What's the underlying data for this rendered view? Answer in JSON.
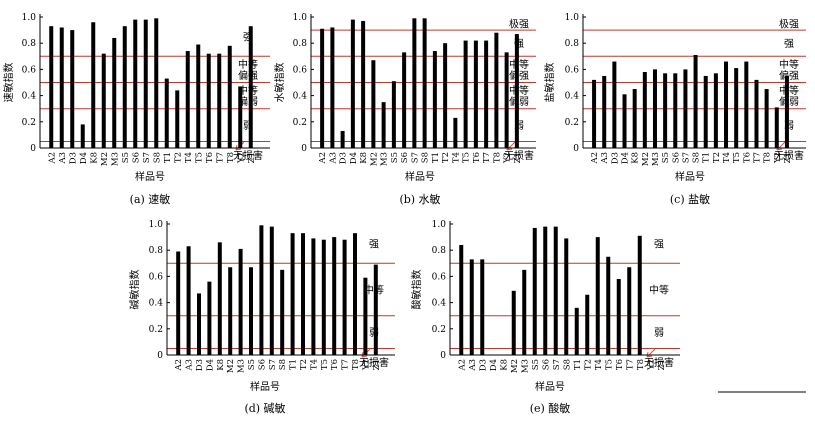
{
  "chart_data": [
    {
      "type": "bar",
      "caption": "(a) 速敏",
      "ylabel": "速敏指数",
      "xlabel": "样品号",
      "ylim": [
        0,
        1.0
      ],
      "yticks": [
        "0",
        "0.2",
        "0.4",
        "0.6",
        "0.8",
        "1.0"
      ],
      "categories": [
        "A2",
        "A3",
        "D3",
        "D4",
        "K8",
        "M2",
        "M3",
        "S5",
        "S6",
        "S7",
        "S8",
        "T1",
        "T2",
        "T4",
        "T5",
        "T6",
        "T7",
        "T8",
        "Y2",
        "Z1"
      ],
      "values": [
        0.93,
        0.92,
        0.9,
        0.18,
        0.96,
        0.72,
        0.84,
        0.93,
        0.98,
        0.98,
        0.99,
        0.53,
        0.44,
        0.74,
        0.79,
        0.72,
        0.72,
        0.78,
        0.47,
        0.93
      ],
      "thresholds": [
        0.7,
        0.5,
        0.3,
        0.05
      ],
      "zones": [
        "强",
        "中等\n偏强",
        "中等\n偏弱",
        "弱",
        "无损害"
      ]
    },
    {
      "type": "bar",
      "caption": "(b) 水敏",
      "ylabel": "水敏指数",
      "xlabel": "样品号",
      "ylim": [
        0,
        1.0
      ],
      "yticks": [
        "0",
        "0.2",
        "0.4",
        "0.6",
        "0.8",
        "1.0"
      ],
      "categories": [
        "A2",
        "A3",
        "D3",
        "D4",
        "K8",
        "M2",
        "M3",
        "S5",
        "S6",
        "S7",
        "S8",
        "T1",
        "T2",
        "T4",
        "T5",
        "T6",
        "T7",
        "T8",
        "Y2",
        "Z1"
      ],
      "values": [
        0.91,
        0.92,
        0.13,
        0.98,
        0.97,
        0.67,
        0.35,
        0.51,
        0.73,
        0.99,
        0.99,
        0.74,
        0.8,
        0.23,
        0.82,
        0.82,
        0.82,
        0.88,
        0.73,
        0.87
      ],
      "thresholds": [
        0.9,
        0.7,
        0.5,
        0.3,
        0.05
      ],
      "zones": [
        "极强",
        "强",
        "中等\n偏强",
        "中等\n偏弱",
        "弱",
        "无损害"
      ]
    },
    {
      "type": "bar",
      "caption": "(c) 盐敏",
      "ylabel": "盐敏指数",
      "xlabel": "样品号",
      "ylim": [
        0,
        1.0
      ],
      "yticks": [
        "0",
        "0.2",
        "0.4",
        "0.6",
        "0.8",
        "1.0"
      ],
      "categories": [
        "A2",
        "A3",
        "D3",
        "D4",
        "K8",
        "M2",
        "M3",
        "S5",
        "S6",
        "S7",
        "S8",
        "T1",
        "T2",
        "T4",
        "T5",
        "T6",
        "T7",
        "T8",
        "Y2",
        "Z1"
      ],
      "values": [
        0.52,
        0.55,
        0.66,
        0.41,
        0.45,
        0.58,
        0.6,
        0.57,
        0.57,
        0.6,
        0.71,
        0.55,
        0.57,
        0.66,
        0.61,
        0.66,
        0.52,
        0.45,
        0.31,
        0.55
      ],
      "thresholds": [
        0.9,
        0.7,
        0.5,
        0.3,
        0.05
      ],
      "zones": [
        "极强",
        "强",
        "中等\n偏强",
        "中等\n偏弱",
        "弱",
        "无损害"
      ]
    },
    {
      "type": "bar",
      "caption": "(d) 碱敏",
      "ylabel": "碱敏指数",
      "xlabel": "样品号",
      "ylim": [
        0,
        1.0
      ],
      "yticks": [
        "0",
        "0.2",
        "0.4",
        "0.6",
        "0.8",
        "1.0"
      ],
      "categories": [
        "A2",
        "A3",
        "D3",
        "D4",
        "K8",
        "M2",
        "M3",
        "S5",
        "S6",
        "S7",
        "S8",
        "T1",
        "T2",
        "T4",
        "T5",
        "T6",
        "T7",
        "T8",
        "Y2",
        "Z1"
      ],
      "values": [
        0.79,
        0.83,
        0.47,
        0.56,
        0.86,
        0.67,
        0.81,
        0.67,
        0.99,
        0.98,
        0.65,
        0.93,
        0.93,
        0.89,
        0.88,
        0.9,
        0.88,
        0.93,
        0.59,
        0.69
      ],
      "thresholds": [
        0.7,
        0.3,
        0.05
      ],
      "zones": [
        "强",
        "中等",
        "弱",
        "无损害"
      ]
    },
    {
      "type": "bar",
      "caption": "(e) 酸敏",
      "ylabel": "酸敏指数",
      "xlabel": "样品号",
      "ylim": [
        0,
        1.0
      ],
      "yticks": [
        "0",
        "0.2",
        "0.4",
        "0.6",
        "0.8",
        "1.0"
      ],
      "categories": [
        "A2",
        "A3",
        "D3",
        "D4",
        "K8",
        "M2",
        "M3",
        "S5",
        "S6",
        "S7",
        "S8",
        "T1",
        "T2",
        "T4",
        "T5",
        "T6",
        "T7",
        "T8",
        "Y2",
        "Z1"
      ],
      "values": [
        0.84,
        0.73,
        0.73,
        0,
        0,
        0.49,
        0.65,
        0.97,
        0.98,
        0.98,
        0.89,
        0.36,
        0.46,
        0.9,
        0.75,
        0.58,
        0.67,
        0.91,
        0,
        0
      ],
      "thresholds": [
        0.7,
        0.3,
        0.05
      ],
      "zones": [
        "强",
        "中等",
        "弱",
        "无损害"
      ]
    }
  ]
}
